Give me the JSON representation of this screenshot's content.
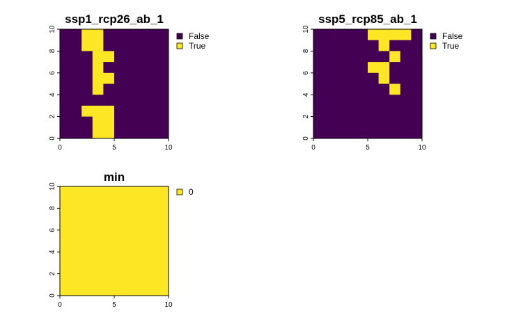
{
  "colors": {
    "false_color": "#440154",
    "true_color": "#FDE725",
    "zero_color": "#FDE725",
    "border": "#000000"
  },
  "chart_data": [
    {
      "type": "heatmap",
      "title": "ssp1_rcp26_ab_1",
      "xlim": [
        0,
        10
      ],
      "ylim": [
        0,
        10
      ],
      "x_ticks": [
        "0",
        "5",
        "10"
      ],
      "y_ticks": [
        "0",
        "2",
        "4",
        "6",
        "8",
        "10"
      ],
      "legend": [
        {
          "label": "False",
          "color": "#440154"
        },
        {
          "label": "True",
          "color": "#FDE725"
        }
      ],
      "grid": [
        [
          0,
          0,
          1,
          1,
          0,
          0,
          0,
          0,
          0,
          0
        ],
        [
          0,
          0,
          1,
          1,
          0,
          0,
          0,
          0,
          0,
          0
        ],
        [
          0,
          0,
          0,
          1,
          1,
          0,
          0,
          0,
          0,
          0
        ],
        [
          0,
          0,
          0,
          1,
          0,
          0,
          0,
          0,
          0,
          0
        ],
        [
          0,
          0,
          0,
          1,
          1,
          0,
          0,
          0,
          0,
          0
        ],
        [
          0,
          0,
          0,
          1,
          0,
          0,
          0,
          0,
          0,
          0
        ],
        [
          0,
          0,
          0,
          0,
          0,
          0,
          0,
          0,
          0,
          0
        ],
        [
          0,
          0,
          1,
          1,
          1,
          0,
          0,
          0,
          0,
          0
        ],
        [
          0,
          0,
          0,
          1,
          1,
          0,
          0,
          0,
          0,
          0
        ],
        [
          0,
          0,
          0,
          1,
          1,
          0,
          0,
          0,
          0,
          0
        ]
      ]
    },
    {
      "type": "heatmap",
      "title": "ssp5_rcp85_ab_1",
      "xlim": [
        0,
        10
      ],
      "ylim": [
        0,
        10
      ],
      "x_ticks": [
        "0",
        "5",
        "10"
      ],
      "y_ticks": [
        "0",
        "2",
        "4",
        "6",
        "8",
        "10"
      ],
      "legend": [
        {
          "label": "False",
          "color": "#440154"
        },
        {
          "label": "True",
          "color": "#FDE725"
        }
      ],
      "grid": [
        [
          0,
          0,
          0,
          0,
          0,
          1,
          1,
          1,
          1,
          0
        ],
        [
          0,
          0,
          0,
          0,
          0,
          0,
          1,
          0,
          0,
          0
        ],
        [
          0,
          0,
          0,
          0,
          0,
          0,
          0,
          1,
          0,
          0
        ],
        [
          0,
          0,
          0,
          0,
          0,
          1,
          1,
          0,
          0,
          0
        ],
        [
          0,
          0,
          0,
          0,
          0,
          0,
          1,
          0,
          0,
          0
        ],
        [
          0,
          0,
          0,
          0,
          0,
          0,
          0,
          1,
          0,
          0
        ],
        [
          0,
          0,
          0,
          0,
          0,
          0,
          0,
          0,
          0,
          0
        ],
        [
          0,
          0,
          0,
          0,
          0,
          0,
          0,
          0,
          0,
          0
        ],
        [
          0,
          0,
          0,
          0,
          0,
          0,
          0,
          0,
          0,
          0
        ],
        [
          0,
          0,
          0,
          0,
          0,
          0,
          0,
          0,
          0,
          0
        ]
      ]
    },
    {
      "type": "heatmap",
      "title": "min",
      "xlim": [
        0,
        10
      ],
      "ylim": [
        0,
        10
      ],
      "x_ticks": [
        "0",
        "5",
        "10"
      ],
      "y_ticks": [
        "0",
        "2",
        "4",
        "6",
        "8",
        "10"
      ],
      "legend": [
        {
          "label": "0",
          "color": "#FDE725"
        }
      ],
      "grid": [
        [
          1,
          1,
          1,
          1,
          1,
          1,
          1,
          1,
          1,
          1
        ],
        [
          1,
          1,
          1,
          1,
          1,
          1,
          1,
          1,
          1,
          1
        ],
        [
          1,
          1,
          1,
          1,
          1,
          1,
          1,
          1,
          1,
          1
        ],
        [
          1,
          1,
          1,
          1,
          1,
          1,
          1,
          1,
          1,
          1
        ],
        [
          1,
          1,
          1,
          1,
          1,
          1,
          1,
          1,
          1,
          1
        ],
        [
          1,
          1,
          1,
          1,
          1,
          1,
          1,
          1,
          1,
          1
        ],
        [
          1,
          1,
          1,
          1,
          1,
          1,
          1,
          1,
          1,
          1
        ],
        [
          1,
          1,
          1,
          1,
          1,
          1,
          1,
          1,
          1,
          1
        ],
        [
          1,
          1,
          1,
          1,
          1,
          1,
          1,
          1,
          1,
          1
        ],
        [
          1,
          1,
          1,
          1,
          1,
          1,
          1,
          1,
          1,
          1
        ]
      ]
    }
  ]
}
